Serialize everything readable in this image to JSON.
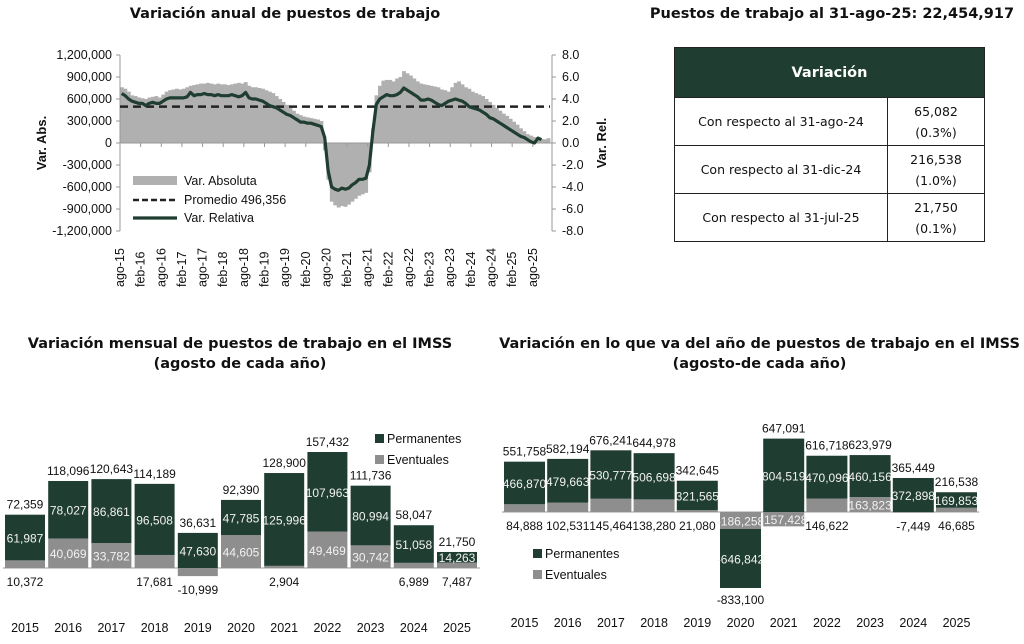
{
  "colors": {
    "dark_green": "#1f3d30",
    "gray_bar": "#b0b0b0",
    "eventuales_gray": "#8e8e8e",
    "table_header": "#1f3d30"
  },
  "summary": {
    "title": "Puestos de trabajo al 31-ago-25: 22,454,917",
    "table_header": "Variación",
    "rows": [
      {
        "label": "Con respecto al 31-ago-24",
        "value": "65,082",
        "pct": "(0.3%)"
      },
      {
        "label": "Con respecto al 31-dic-24",
        "value": "216,538",
        "pct": "(1.0%)"
      },
      {
        "label": "Con respecto al 31-jul-25",
        "value": "21,750",
        "pct": "(0.1%)"
      }
    ]
  },
  "chart_data": [
    {
      "type": "line",
      "title": "Variación anual de puestos de trabajo",
      "ylabel": "Var. Abs.",
      "y2label": "Var. Rel.",
      "ylim": [
        -1200000,
        1200000
      ],
      "y2lim": [
        -8.0,
        8.0
      ],
      "yticks": [
        "1,200,000",
        "900,000",
        "600,000",
        "300,000",
        "0",
        "-300,000",
        "-600,000",
        "-900,000",
        "-1,200,000"
      ],
      "y2ticks": [
        "8.0",
        "6.0",
        "4.0",
        "2.0",
        "0.0",
        "-2.0",
        "-4.0",
        "-6.0",
        "-8.0"
      ],
      "xticks": [
        "ago-15",
        "feb-16",
        "ago-16",
        "feb-17",
        "ago-17",
        "feb-18",
        "ago-18",
        "feb-19",
        "ago-19",
        "feb-20",
        "ago-20",
        "feb-21",
        "ago-21",
        "feb-22",
        "ago-22",
        "feb-23",
        "ago-23",
        "feb-24",
        "ago-24",
        "feb-25",
        "ago-25"
      ],
      "legend": {
        "position": "bottom-left",
        "items": [
          "Var. Absoluta",
          "Promedio 496,356",
          "Var. Relativa"
        ]
      },
      "average": 496356,
      "series": [
        {
          "name": "Var. Absoluta",
          "kind": "bar",
          "values": [
            760,
            740,
            700,
            650,
            640,
            620,
            610,
            600,
            620,
            630,
            640,
            620,
            660,
            700,
            720,
            730,
            740,
            730,
            740,
            760,
            780,
            790,
            800,
            810,
            810,
            820,
            810,
            800,
            810,
            800,
            800,
            790,
            800,
            810,
            820,
            810,
            830,
            780,
            760,
            760,
            750,
            740,
            720,
            700,
            680,
            640,
            600,
            560,
            520,
            480,
            440,
            400,
            380,
            360,
            350,
            340,
            330,
            320,
            300,
            -100,
            -500,
            -800,
            -850,
            -880,
            -860,
            -870,
            -840,
            -800,
            -760,
            -720,
            -700,
            -680,
            -400,
            200,
            650,
            780,
            850,
            860,
            860,
            840,
            880,
            900,
            980,
            950,
            920,
            880,
            840,
            810,
            800,
            790,
            780,
            770,
            760,
            730,
            720,
            700,
            760,
            820,
            840,
            800,
            760,
            740,
            700,
            680,
            660,
            640,
            600,
            560,
            520,
            480,
            440,
            400,
            370,
            330,
            290,
            250,
            200,
            160,
            120,
            100,
            80,
            65,
            55,
            50,
            65
          ]
        },
        {
          "name": "Var. Relativa",
          "kind": "line",
          "values": [
            4.5,
            4.3,
            4.0,
            3.8,
            3.7,
            3.6,
            3.6,
            3.4,
            3.6,
            3.7,
            3.6,
            3.6,
            3.8,
            4.0,
            4.1,
            4.1,
            4.1,
            4.1,
            4.1,
            4.2,
            4.6,
            4.3,
            4.4,
            4.4,
            4.5,
            4.4,
            4.4,
            4.3,
            4.4,
            4.3,
            4.3,
            4.3,
            4.4,
            4.3,
            4.2,
            4.3,
            4.6,
            4.1,
            4.0,
            4.0,
            3.9,
            3.8,
            3.6,
            3.4,
            3.3,
            3.2,
            3.0,
            2.8,
            2.6,
            2.5,
            2.3,
            2.1,
            1.9,
            1.9,
            1.8,
            1.8,
            1.7,
            1.6,
            1.5,
            0.5,
            -2.5,
            -4.0,
            -4.2,
            -4.3,
            -4.1,
            -4.2,
            -4.1,
            -3.8,
            -3.6,
            -3.3,
            -3.3,
            -3.2,
            -2.0,
            1.0,
            3.5,
            4.0,
            4.2,
            4.4,
            4.3,
            4.3,
            4.4,
            4.6,
            5.0,
            4.8,
            4.6,
            4.4,
            4.2,
            3.9,
            3.9,
            4.0,
            3.9,
            3.7,
            3.5,
            3.4,
            3.6,
            3.8,
            3.9,
            4.0,
            3.9,
            3.8,
            3.6,
            3.3,
            3.2,
            3.1,
            3.0,
            2.8,
            2.6,
            2.3,
            2.2,
            2.0,
            1.8,
            1.6,
            1.4,
            1.2,
            1.0,
            0.8,
            0.6,
            0.5,
            0.3,
            0.1,
            0.0,
            0.45,
            0.3
          ]
        }
      ],
      "absolute_units": "thousands"
    },
    {
      "type": "bar",
      "title": "Variación mensual de puestos de trabajo en el IMSS",
      "subtitle": "(agosto de cada año)",
      "categories": [
        "2015",
        "2016",
        "2017",
        "2018",
        "2019",
        "2020",
        "2021",
        "2022",
        "2023",
        "2024",
        "2025"
      ],
      "legend": {
        "position": "top-right",
        "items": [
          "Permanentes",
          "Eventuales"
        ]
      },
      "series": [
        {
          "name": "Permanentes",
          "values": [
            61987,
            78027,
            86861,
            96508,
            47630,
            47785,
            125996,
            107963,
            80994,
            51058,
            14263
          ]
        },
        {
          "name": "Eventuales",
          "values": [
            10372,
            40069,
            33782,
            17681,
            -10999,
            44605,
            2904,
            49469,
            30742,
            6989,
            7487
          ]
        }
      ],
      "totals": [
        72359,
        118096,
        120643,
        114189,
        36631,
        92390,
        128900,
        157432,
        111736,
        58047,
        21750
      ],
      "labels": {
        "perm": [
          "61,987",
          "78,027",
          "86,861",
          "96,508",
          "47,630",
          "47,785",
          "125,996",
          "107,963",
          "80,994",
          "51,058",
          "14,263"
        ],
        "event": [
          "10,372",
          "40,069",
          "33,782",
          "17,681",
          "-10,999",
          "44,605",
          "2,904",
          "49,469",
          "30,742",
          "6,989",
          "7,487"
        ],
        "total": [
          "72,359",
          "118,096",
          "120,643",
          "114,189",
          "36,631",
          "92,390",
          "128,900",
          "157,432",
          "111,736",
          "58,047",
          "21,750"
        ]
      }
    },
    {
      "type": "bar",
      "title": "Variación en lo que va del año de puestos de trabajo en el IMSS",
      "subtitle": "(agosto-de cada año)",
      "categories": [
        "2015",
        "2016",
        "2017",
        "2018",
        "2019",
        "2020",
        "2021",
        "2022",
        "2023",
        "2024",
        "2025"
      ],
      "legend": {
        "position": "bottom-left",
        "items": [
          "Permanentes",
          "Eventuales"
        ]
      },
      "series": [
        {
          "name": "Permanentes",
          "values": [
            466870,
            479663,
            530777,
            506698,
            321565,
            -646842,
            804519,
            470096,
            460156,
            372898,
            169853
          ]
        },
        {
          "name": "Eventuales",
          "values": [
            84888,
            102531,
            145464,
            138280,
            21080,
            -186258,
            -157428,
            146622,
            163823,
            -7449,
            46685
          ]
        }
      ],
      "totals": [
        551758,
        582194,
        676241,
        644978,
        342645,
        -833100,
        647091,
        616718,
        623979,
        365449,
        216538
      ],
      "labels": {
        "perm": [
          "466,870",
          "479,663",
          "530,777",
          "506,698",
          "321,565",
          "-646,842",
          "804,519",
          "470,096",
          "460,156",
          "372,898",
          "169,853"
        ],
        "event": [
          "84,888",
          "102,531",
          "145,464",
          "138,280",
          "21,080",
          "-186,258",
          "-157,428",
          "146,622",
          "163,823",
          "-7,449",
          "46,685"
        ],
        "total": [
          "551,758",
          "582,194",
          "676,241",
          "644,978",
          "342,645",
          "-833,100",
          "647,091",
          "616,718",
          "623,979",
          "365,449",
          "216,538"
        ]
      }
    }
  ]
}
